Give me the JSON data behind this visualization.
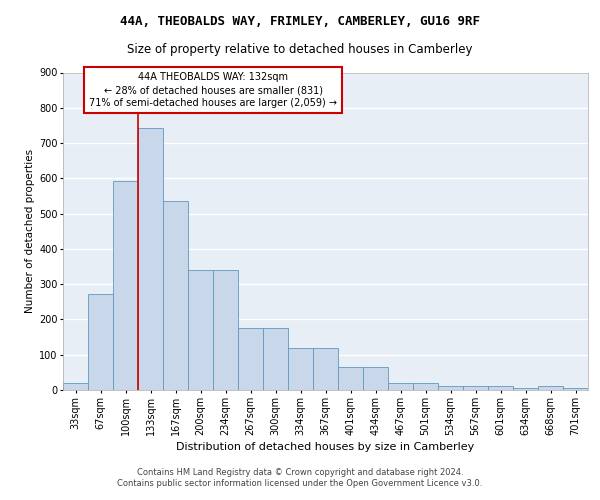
{
  "title1": "44A, THEOBALDS WAY, FRIMLEY, CAMBERLEY, GU16 9RF",
  "title2": "Size of property relative to detached houses in Camberley",
  "xlabel": "Distribution of detached houses by size in Camberley",
  "ylabel": "Number of detached properties",
  "categories": [
    "33sqm",
    "67sqm",
    "100sqm",
    "133sqm",
    "167sqm",
    "200sqm",
    "234sqm",
    "267sqm",
    "300sqm",
    "334sqm",
    "367sqm",
    "401sqm",
    "434sqm",
    "467sqm",
    "501sqm",
    "534sqm",
    "567sqm",
    "601sqm",
    "634sqm",
    "668sqm",
    "701sqm"
  ],
  "values": [
    20,
    272,
    592,
    742,
    535,
    340,
    340,
    175,
    175,
    120,
    120,
    65,
    65,
    20,
    20,
    10,
    10,
    10,
    5,
    10,
    5
  ],
  "bar_color": "#c8d8ea",
  "bar_edge_color": "#5f99c0",
  "vline_index": 3,
  "vline_color": "#cc0000",
  "annotation_line1": "44A THEOBALDS WAY: 132sqm",
  "annotation_line2": "← 28% of detached houses are smaller (831)",
  "annotation_line3": "71% of semi-detached houses are larger (2,059) →",
  "annotation_box_color": "#ffffff",
  "annotation_box_edge_color": "#cc0000",
  "ylim_max": 900,
  "yticks": [
    0,
    100,
    200,
    300,
    400,
    500,
    600,
    700,
    800,
    900
  ],
  "footer_line1": "Contains HM Land Registry data © Crown copyright and database right 2024.",
  "footer_line2": "Contains public sector information licensed under the Open Government Licence v3.0.",
  "plot_bg_color": "#e8eef5",
  "grid_color": "#ffffff",
  "title1_fontsize": 9,
  "title2_fontsize": 8.5,
  "xlabel_fontsize": 8,
  "ylabel_fontsize": 7.5,
  "footer_fontsize": 6,
  "tick_fontsize": 7,
  "ann_fontsize": 7
}
